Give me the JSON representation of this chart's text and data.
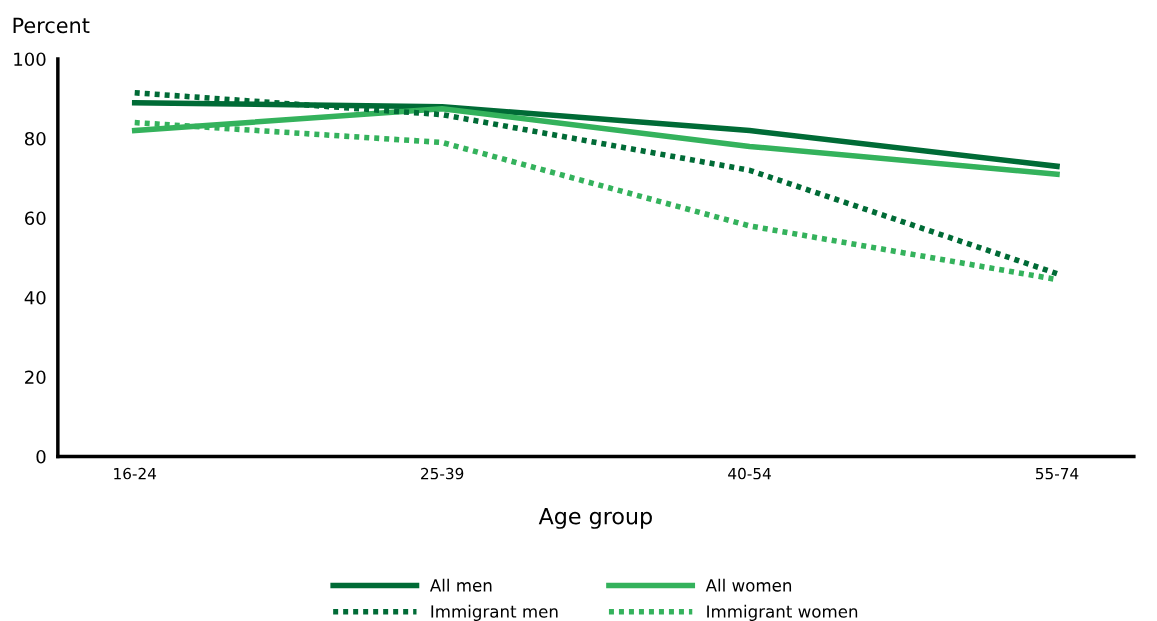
{
  "chart_data": {
    "type": "line",
    "ylabel": "Percent",
    "xlabel": "Age group",
    "categories": [
      "16-24",
      "25-39",
      "40-54",
      "55-74"
    ],
    "ylim": [
      0,
      100
    ],
    "yticks": [
      0,
      20,
      40,
      60,
      80,
      100
    ],
    "grid": false,
    "legend": "bottom",
    "marker": "none",
    "series": [
      {
        "name": "All men",
        "color": "#006b36",
        "line_style": "solid",
        "values": [
          89,
          88,
          82,
          73
        ]
      },
      {
        "name": "All women",
        "color": "#34b25c",
        "line_style": "solid",
        "values": [
          82,
          87.5,
          78,
          71
        ]
      },
      {
        "name": "Immigrant men",
        "color": "#006b36",
        "line_style": "dotted",
        "values": [
          91.5,
          86,
          72,
          46
        ]
      },
      {
        "name": "Immigrant women",
        "color": "#34b25c",
        "line_style": "dotted",
        "values": [
          84,
          79,
          58,
          44.5
        ]
      }
    ]
  }
}
